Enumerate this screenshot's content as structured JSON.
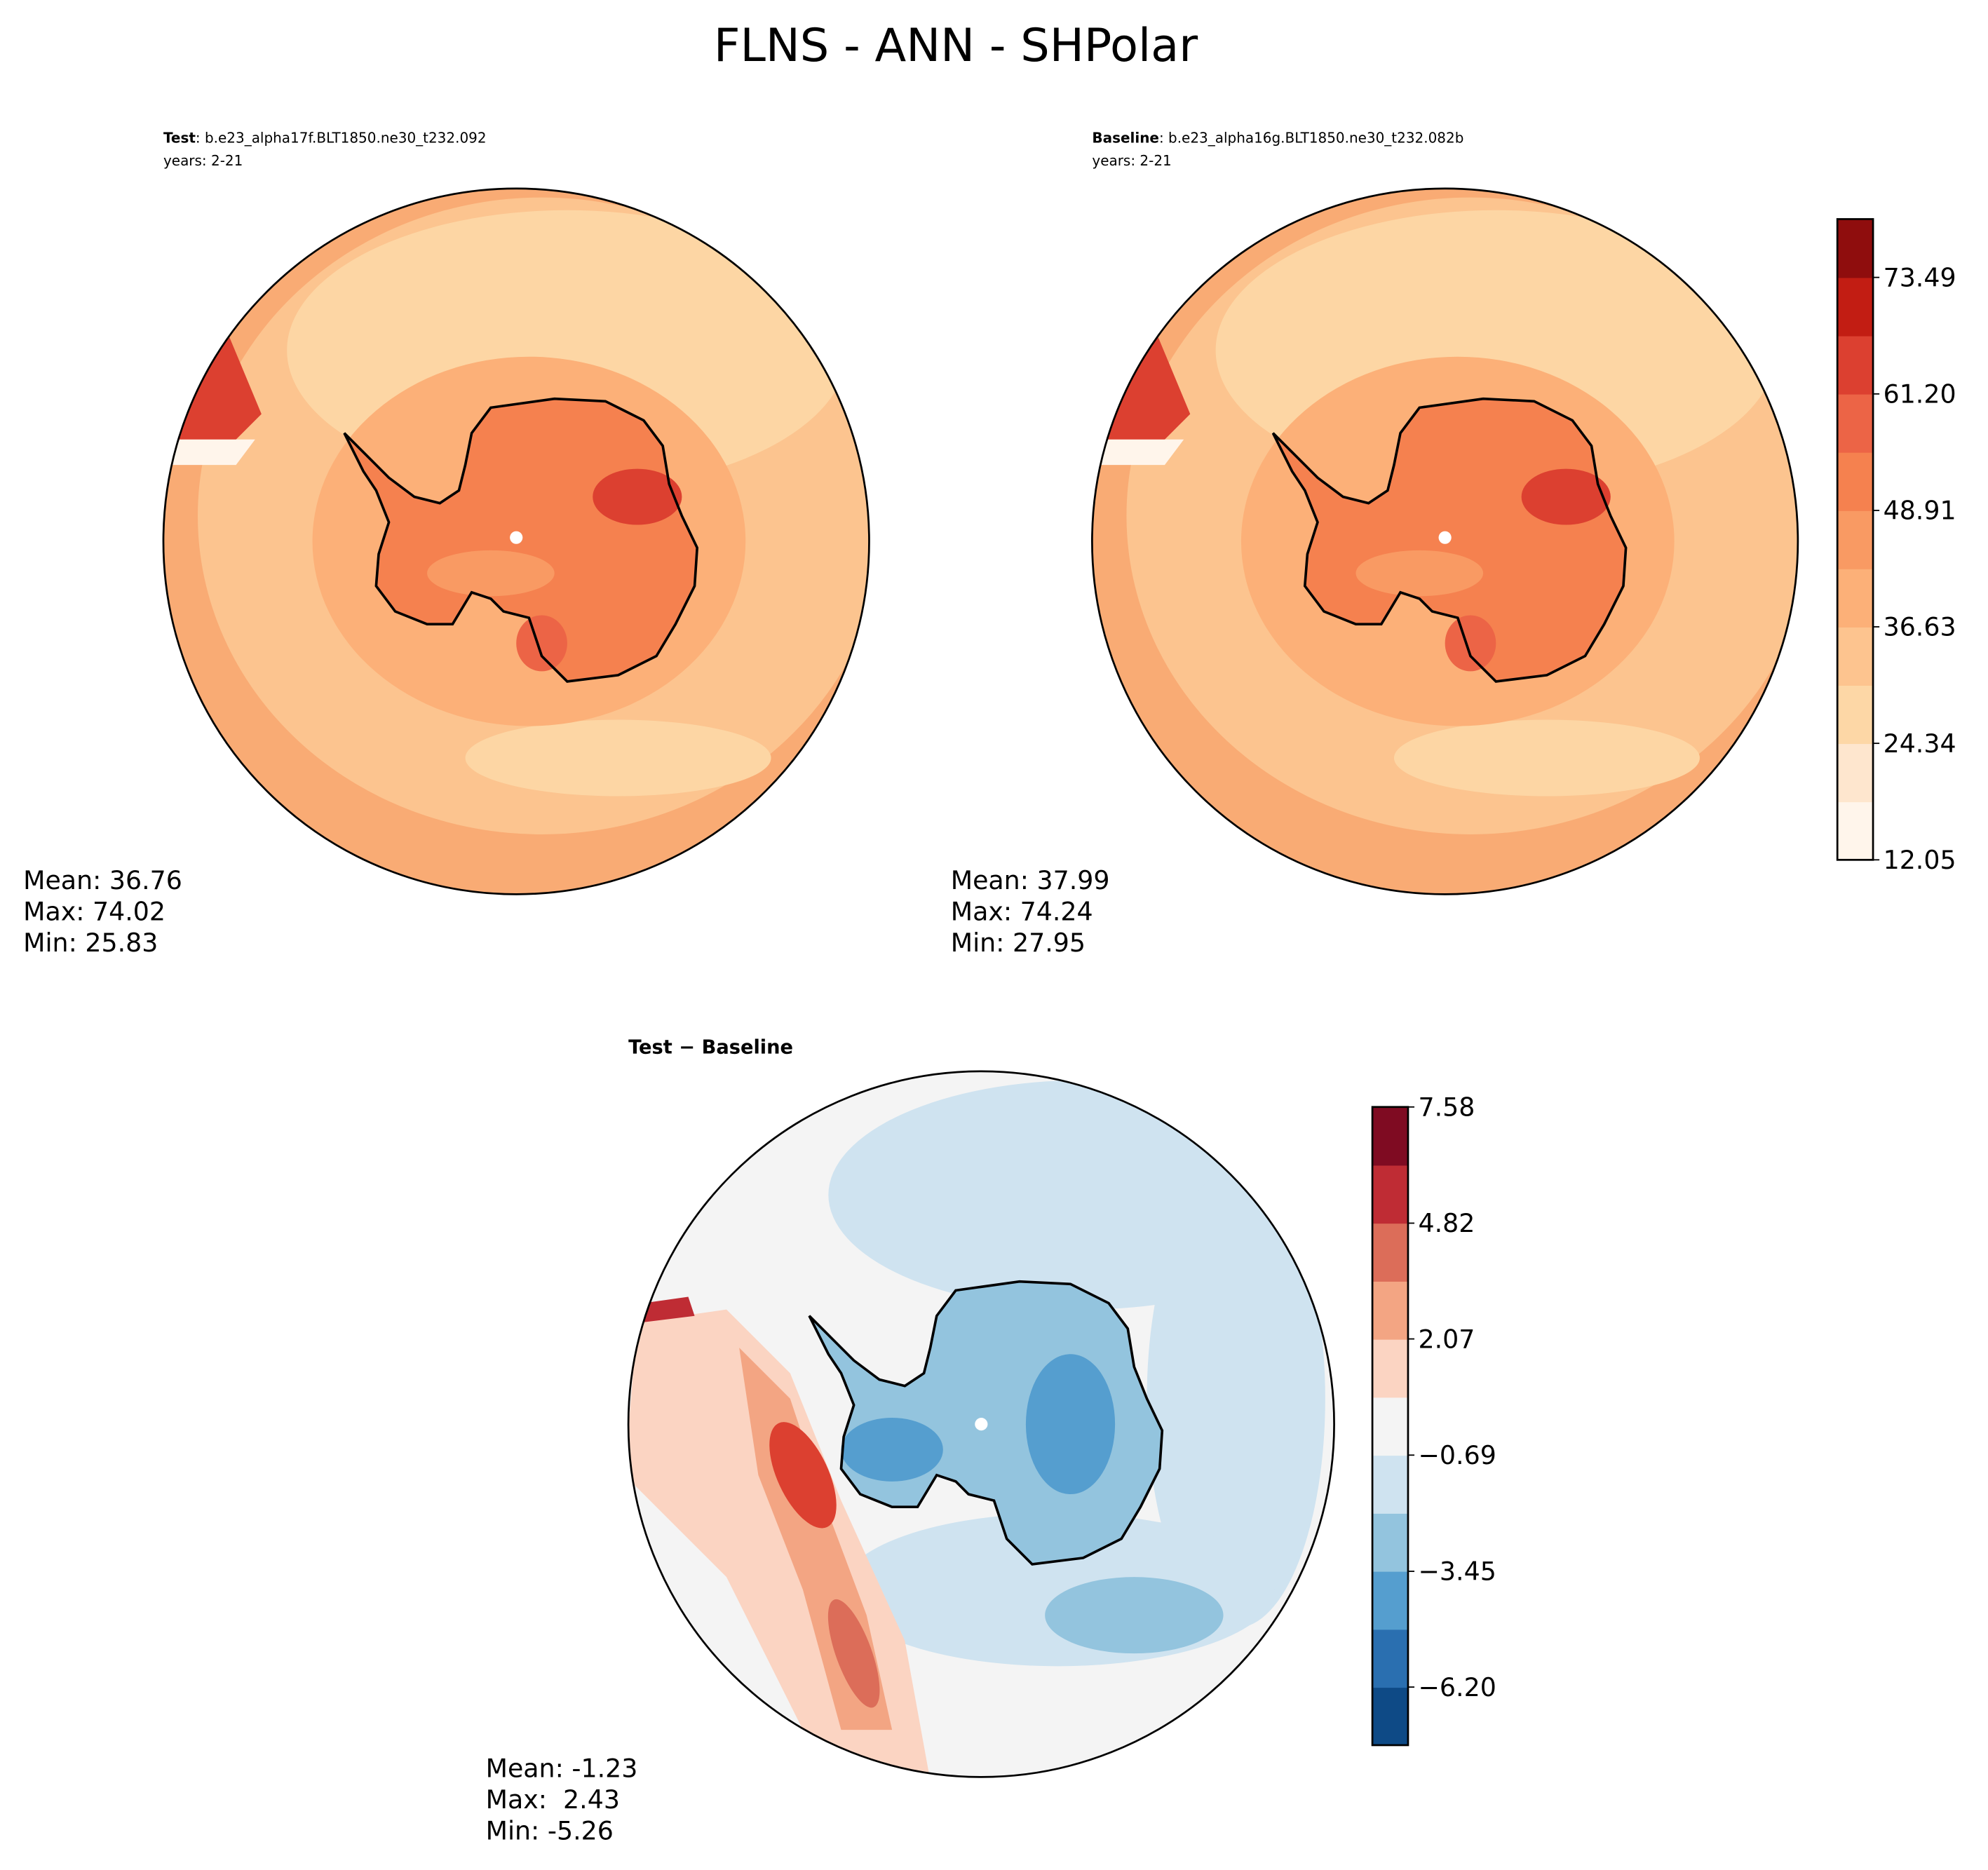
{
  "title": "FLNS - ANN - SHPolar",
  "panels": [
    {
      "label": "Test",
      "case": ": b.e23_alpha17f.BLT1850.ne30_t232.092",
      "years": "years: 2-21",
      "stats": [
        "Mean: 36.76",
        "Max: 74.02",
        "Min: 25.83"
      ]
    },
    {
      "label": "Baseline",
      "case": ": b.e23_alpha16g.BLT1850.ne30_t232.082b",
      "years": "years: 2-21",
      "stats": [
        "Mean: 37.99",
        "Max: 74.24",
        "Min: 27.95"
      ]
    },
    {
      "label": "Test − Baseline",
      "stats": [
        "Mean: -1.23",
        "Max:  2.43",
        "Min: -5.26"
      ]
    }
  ],
  "colorbars": [
    {
      "lim": [
        12.05,
        79.64
      ],
      "ticks": [
        12.05,
        24.34,
        36.63,
        48.91,
        {
          "value": 61.2,
          "label": "61.20"
        },
        73.49
      ],
      "colors": [
        "#fff5eb",
        "#fee6ce",
        "#fdd7a6",
        "#fdc48f",
        "#fcb078",
        "#f99a63",
        "#f5814f",
        "#ec6446",
        "#dc4030",
        "#c21d13",
        "#8f0d0d"
      ]
    },
    {
      "lim": [
        -7.58,
        7.58
      ],
      "ticks": [
        {
          "value": -6.2,
          "label": "−6.20"
        },
        {
          "value": -3.45,
          "label": "−3.45"
        },
        {
          "value": -0.69,
          "label": "−0.69"
        },
        2.07,
        4.82,
        7.58
      ],
      "colors": [
        "#0e4a86",
        "#2a6fb0",
        "#559ecf",
        "#93c4de",
        "#cfe3f0",
        "#f4f4f4",
        "#fbd4c2",
        "#f3a583",
        "#dc6d59",
        "#bf2c34",
        "#7f0b22"
      ]
    }
  ]
}
